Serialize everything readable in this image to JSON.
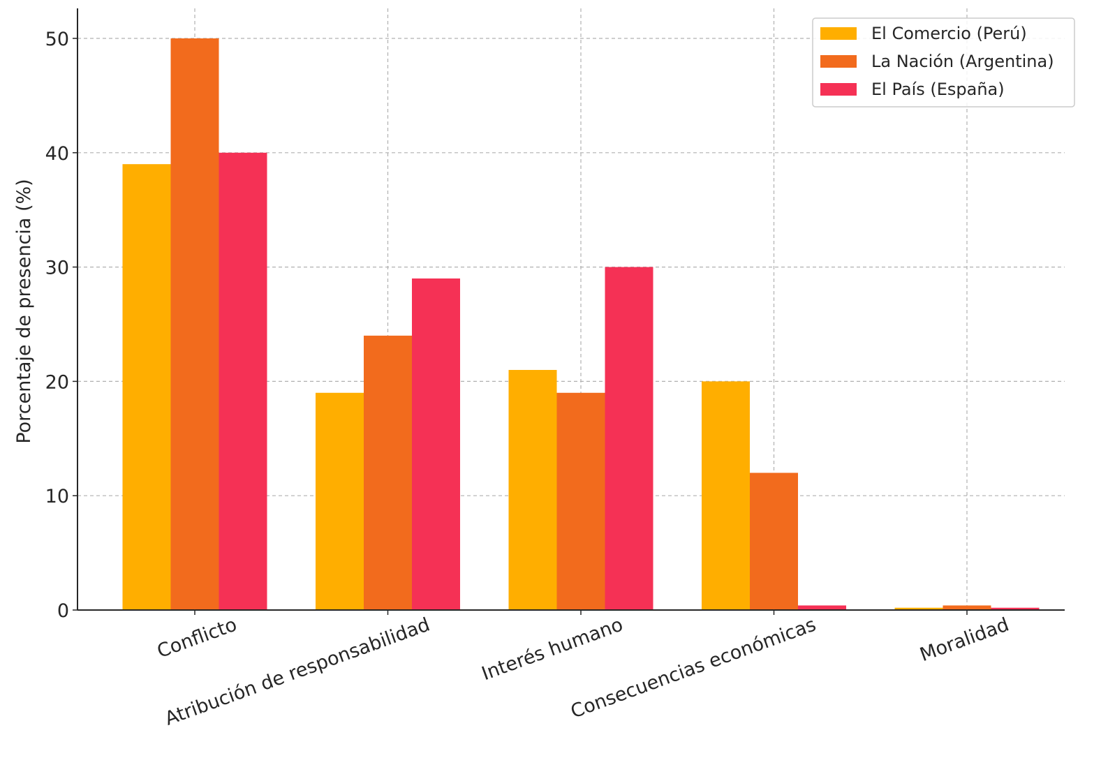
{
  "chart_data": {
    "type": "bar",
    "title": "",
    "xlabel": "",
    "ylabel": "Porcentaje de presencia (%)",
    "ylim": [
      0,
      52.5
    ],
    "yticks": [
      0,
      10,
      20,
      30,
      40,
      50
    ],
    "grid": true,
    "legend_position": "top-right",
    "categories": [
      "Conflicto",
      "Atribución de responsabilidad",
      "Interés humano",
      "Consecuencias económicas",
      "Moralidad"
    ],
    "series": [
      {
        "name": "El Comercio (Perú)",
        "color": "#FFAE00",
        "values": [
          39,
          19,
          21,
          20,
          0.2
        ]
      },
      {
        "name": "La Nación (Argentina)",
        "color": "#F26B1D",
        "values": [
          50,
          24,
          19,
          12,
          0.4
        ]
      },
      {
        "name": "El País (España)",
        "color": "#F53155",
        "values": [
          40,
          29,
          30,
          0.4,
          0.2
        ]
      }
    ]
  }
}
